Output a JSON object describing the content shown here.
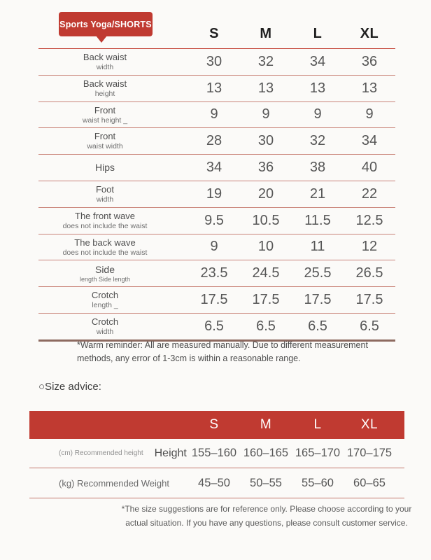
{
  "badge": {
    "label": "Sports Yoga/SHORTS",
    "color": "#c03a31"
  },
  "size_table": {
    "columns": [
      "S",
      "M",
      "L",
      "XL"
    ],
    "rows": [
      {
        "label_line1": "Back waist",
        "label_line2": "width",
        "values": [
          "30",
          "32",
          "34",
          "36"
        ]
      },
      {
        "label_line1": "Back waist",
        "label_line2": "height",
        "values": [
          "13",
          "13",
          "13",
          "13"
        ]
      },
      {
        "label_line1": "Front",
        "label_line2": "waist height _",
        "values": [
          "9",
          "9",
          "9",
          "9"
        ]
      },
      {
        "label_line1": "Front",
        "label_line2": "waist width",
        "values": [
          "28",
          "30",
          "32",
          "34"
        ]
      },
      {
        "label_line1": "Hips",
        "label_line2": "",
        "values": [
          "34",
          "36",
          "38",
          "40"
        ]
      },
      {
        "label_line1": "Foot",
        "label_line2": "width",
        "values": [
          "19",
          "20",
          "21",
          "22"
        ]
      },
      {
        "label_line1": "The front wave",
        "label_line2": "does not include the waist",
        "values": [
          "9.5",
          "10.5",
          "11.5",
          "12.5"
        ]
      },
      {
        "label_line1": "The back wave",
        "label_line2": "does not include the waist",
        "values": [
          "9",
          "10",
          "11",
          "12"
        ]
      },
      {
        "label_line1": "Side",
        "label_line2": "length Side length",
        "values": [
          "23.5",
          "24.5",
          "25.5",
          "26.5"
        ]
      },
      {
        "label_line1": "Crotch",
        "label_line2": "length _",
        "values": [
          "17.5",
          "17.5",
          "17.5",
          "17.5"
        ]
      },
      {
        "label_line1": "Crotch",
        "label_line2": "width",
        "values": [
          "6.5",
          "6.5",
          "6.5",
          "6.5"
        ]
      }
    ],
    "reminder": "*Warm reminder: All are measured manually. Due to different measurement methods, any error of 1-3cm is within a reasonable range."
  },
  "size_advice": {
    "heading": "○Size advice:",
    "columns": [
      "S",
      "M",
      "L",
      "XL"
    ],
    "height_row": {
      "label_small": "(cm) Recommended height",
      "label_main": "Height",
      "values": [
        "155–160",
        "160–165",
        "165–170",
        "170–175"
      ]
    },
    "weight_row": {
      "label": "(kg) Recommended Weight",
      "values": [
        "45–50",
        "50–55",
        "55–60",
        "60–65"
      ]
    },
    "note": "*The size suggestions are for reference only. Please choose according to your actual situation. If you have any questions, please consult customer service."
  }
}
